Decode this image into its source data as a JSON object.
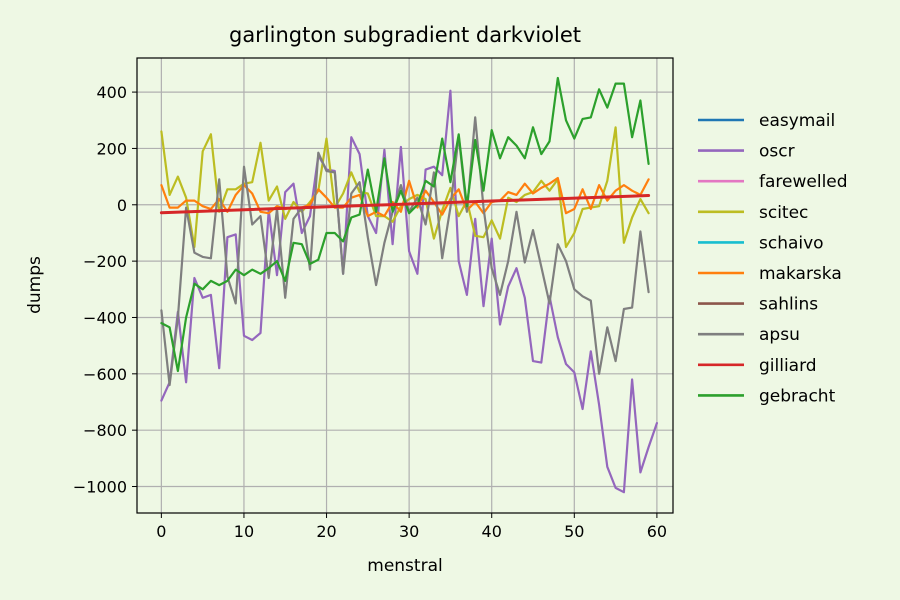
{
  "chart_data": {
    "type": "line",
    "title": "garlington subgradient darkviolet",
    "xlabel": "menstral",
    "ylabel": "dumps",
    "xlim": [
      -2.95,
      61.95
    ],
    "ylim": [
      -1094,
      521
    ],
    "xticks": [
      0,
      10,
      20,
      30,
      40,
      50,
      60
    ],
    "yticks": [
      -1000,
      -800,
      -600,
      -400,
      -200,
      0,
      200,
      400
    ],
    "ytick_labels": [
      "−1000",
      "−800",
      "−600",
      "−400",
      "−200",
      "0",
      "200",
      "400"
    ],
    "grid": true,
    "legend_position": "outside-right",
    "series": [
      {
        "name": "easymail",
        "color": "#1f77b4",
        "points": [
          [
            0,
            -28
          ],
          [
            59,
            33
          ]
        ]
      },
      {
        "name": "oscr",
        "color": "#9467bd",
        "y": [
          -695,
          -630,
          -380,
          -630,
          -260,
          -330,
          -320,
          -580,
          -115,
          -105,
          -465,
          -480,
          -455,
          -20,
          -250,
          45,
          75,
          -100,
          -40,
          175,
          125,
          120,
          -245,
          240,
          180,
          -40,
          -100,
          195,
          -140,
          205,
          -165,
          -245,
          125,
          135,
          105,
          405,
          -200,
          -320,
          -50,
          -360,
          -120,
          -425,
          -290,
          -225,
          -330,
          -555,
          -560,
          -325,
          -470,
          -565,
          -595,
          -725,
          -520,
          -710,
          -930,
          -1005,
          -1020,
          -620,
          -950,
          -860,
          -775
        ]
      },
      {
        "name": "farewelled",
        "color": "#e377c2",
        "points": [
          [
            0,
            -28
          ],
          [
            59,
            33
          ]
        ]
      },
      {
        "name": "scitec",
        "color": "#bcbd22",
        "y": [
          260,
          35,
          100,
          25,
          -150,
          190,
          250,
          -25,
          55,
          55,
          75,
          80,
          220,
          15,
          65,
          -50,
          10,
          -25,
          10,
          50,
          235,
          -10,
          40,
          115,
          45,
          40,
          -40,
          -40,
          -60,
          -5,
          20,
          35,
          20,
          -120,
          -20,
          60,
          -40,
          15,
          -110,
          -115,
          -55,
          -120,
          25,
          10,
          35,
          45,
          85,
          50,
          90,
          -150,
          -100,
          -15,
          -10,
          -5,
          85,
          275,
          -135,
          -45,
          20,
          -30
        ]
      },
      {
        "name": "schaivo",
        "color": "#17becf",
        "points": [
          [
            0,
            -28
          ],
          [
            59,
            33
          ]
        ]
      },
      {
        "name": "makarska",
        "color": "#ff7f0e",
        "y": [
          70,
          -10,
          -10,
          15,
          15,
          -5,
          -15,
          20,
          -25,
          35,
          70,
          40,
          -25,
          -30,
          -5,
          -15,
          -10,
          -10,
          0,
          55,
          25,
          -10,
          -10,
          25,
          35,
          -40,
          -25,
          -40,
          10,
          -25,
          85,
          -10,
          50,
          10,
          -35,
          20,
          55,
          -20,
          10,
          -30,
          10,
          15,
          45,
          35,
          75,
          40,
          60,
          75,
          95,
          -30,
          -15,
          55,
          -15,
          70,
          15,
          50,
          70,
          50,
          35,
          90
        ]
      },
      {
        "name": "sahlins",
        "color": "#8c564b",
        "points": [
          [
            0,
            -28
          ],
          [
            59,
            33
          ]
        ]
      },
      {
        "name": "apsu",
        "color": "#7f7f7f",
        "y": [
          -375,
          -640,
          -400,
          -10,
          -170,
          -185,
          -190,
          90,
          -255,
          -350,
          135,
          -70,
          -40,
          -260,
          -15,
          -330,
          -50,
          -10,
          -230,
          185,
          120,
          115,
          -245,
          40,
          80,
          -115,
          -285,
          -135,
          -25,
          70,
          -25,
          25,
          -70,
          115,
          -190,
          -10,
          245,
          -25,
          310,
          -10,
          -225,
          -320,
          -200,
          -25,
          -205,
          -90,
          -220,
          -350,
          -140,
          -200,
          -300,
          -325,
          -340,
          -600,
          -435,
          -555,
          -370,
          -365,
          -95,
          -310
        ]
      },
      {
        "name": "gilliard",
        "color": "#d62728",
        "points": [
          [
            0,
            -28
          ],
          [
            59,
            33
          ]
        ]
      },
      {
        "name": "gebracht",
        "color": "#2ca02c",
        "y": [
          -420,
          -435,
          -590,
          -400,
          -280,
          -300,
          -270,
          -285,
          -270,
          -230,
          -250,
          -230,
          -245,
          -225,
          -200,
          -270,
          -135,
          -140,
          -210,
          -195,
          -100,
          -100,
          -130,
          -45,
          -35,
          125,
          -25,
          165,
          -25,
          50,
          -30,
          0,
          85,
          65,
          235,
          80,
          250,
          -5,
          230,
          50,
          265,
          165,
          240,
          210,
          165,
          275,
          180,
          225,
          450,
          300,
          235,
          305,
          310,
          410,
          345,
          430,
          430,
          240,
          370,
          145
        ]
      }
    ]
  }
}
